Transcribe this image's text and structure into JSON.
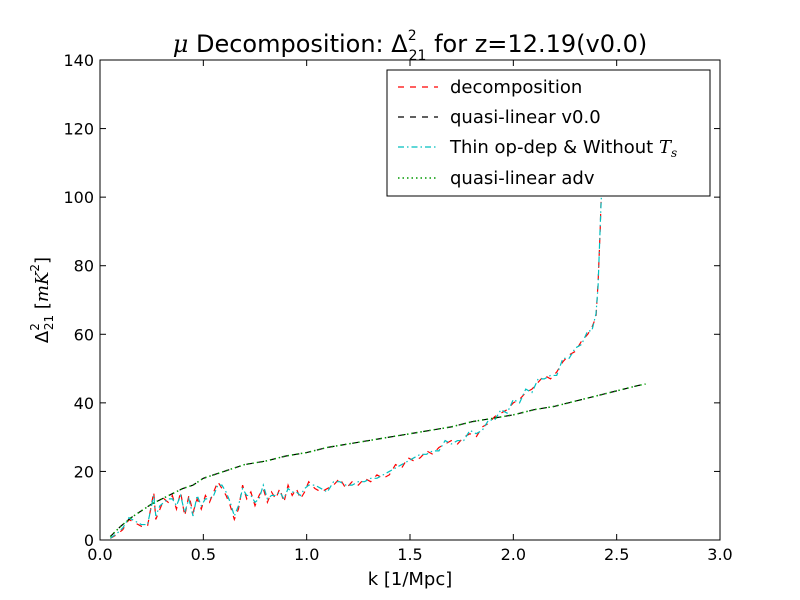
{
  "chart_data": {
    "type": "line",
    "title": {
      "prefix": "μ",
      "middle": " Decomposition: ",
      "delta": "Δ",
      "sup": "2",
      "sub": "21",
      "suffix": " for z=12.19(v0.0)"
    },
    "xlabel": "k [1/Mpc]",
    "ylabel": {
      "delta": "Δ",
      "sup": "2",
      "sub": "21",
      "open": " [",
      "mK": "mK",
      "sup2": "2",
      "close": "]"
    },
    "xlim": [
      0,
      3
    ],
    "ylim": [
      0,
      140
    ],
    "xticks": [
      "0.0",
      "0.5",
      "1.0",
      "1.5",
      "2.0",
      "2.5",
      "3.0"
    ],
    "yticks": [
      "0",
      "20",
      "40",
      "60",
      "80",
      "100",
      "120",
      "140"
    ],
    "legend_position": "top-right",
    "series": [
      {
        "name": "decomposition",
        "color": "#ff0000",
        "style": "dashed",
        "x": [
          0.05,
          0.08,
          0.11,
          0.14,
          0.17,
          0.2,
          0.23,
          0.26,
          0.27,
          0.29,
          0.31,
          0.33,
          0.35,
          0.37,
          0.39,
          0.41,
          0.43,
          0.45,
          0.47,
          0.49,
          0.51,
          0.53,
          0.55,
          0.57,
          0.59,
          0.61,
          0.63,
          0.65,
          0.67,
          0.69,
          0.71,
          0.73,
          0.75,
          0.77,
          0.79,
          0.81,
          0.83,
          0.85,
          0.87,
          0.89,
          0.91,
          0.93,
          0.95,
          0.97,
          0.99,
          1.01,
          1.04,
          1.07,
          1.1,
          1.13,
          1.16,
          1.19,
          1.22,
          1.25,
          1.28,
          1.31,
          1.34,
          1.37,
          1.4,
          1.43,
          1.46,
          1.49,
          1.52,
          1.55,
          1.58,
          1.61,
          1.64,
          1.67,
          1.7,
          1.73,
          1.76,
          1.79,
          1.82,
          1.85,
          1.88,
          1.91,
          1.94,
          1.97,
          2.0,
          2.03,
          2.06,
          2.09,
          2.12,
          2.15,
          2.18,
          2.21,
          2.24,
          2.27,
          2.3,
          2.33,
          2.36,
          2.38,
          2.4,
          2.41,
          2.42,
          2.425,
          2.43
        ],
        "y": [
          0.5,
          1.5,
          3,
          6,
          5,
          4,
          4,
          14,
          6,
          9,
          12,
          11,
          13,
          9,
          14,
          7,
          13,
          8,
          12,
          9,
          13,
          11,
          14,
          17,
          15,
          13,
          10,
          6,
          9,
          16,
          12,
          14,
          10,
          13,
          15,
          11,
          14,
          12,
          15,
          11,
          16,
          13,
          15,
          12,
          14,
          17,
          15,
          14,
          15,
          16,
          18,
          15,
          17,
          16,
          18,
          17,
          19,
          18,
          19,
          22,
          21,
          24,
          23,
          24,
          26,
          25,
          27,
          28,
          29,
          28,
          30,
          31,
          30,
          33,
          34,
          36,
          37,
          38,
          40,
          41,
          43,
          44,
          46,
          48,
          47,
          49,
          52,
          54,
          55,
          58,
          60,
          62,
          65,
          75,
          90,
          100,
          105
        ]
      },
      {
        "name": "quasi-linear v0.0",
        "color": "#000000",
        "style": "dashed",
        "x": [
          0.05,
          0.1,
          0.15,
          0.2,
          0.25,
          0.3,
          0.35,
          0.4,
          0.45,
          0.5,
          0.6,
          0.7,
          0.8,
          0.9,
          1.0,
          1.1,
          1.2,
          1.3,
          1.4,
          1.5,
          1.6,
          1.7,
          1.8,
          1.9,
          2.0,
          2.1,
          2.2,
          2.3,
          2.4,
          2.5,
          2.6,
          2.64
        ],
        "y": [
          1,
          4,
          6.5,
          8.5,
          10.5,
          12,
          13.5,
          15,
          16,
          18,
          20,
          22,
          23,
          24.5,
          25.5,
          27,
          28,
          29,
          30,
          31,
          32,
          33,
          34.5,
          35.5,
          36.5,
          38,
          39,
          40.5,
          42,
          43.5,
          45,
          45.5
        ]
      },
      {
        "name": "Thin op-dep & Without ",
        "name_math": "T",
        "name_sub": "s",
        "color": "#00bfbf",
        "style": "dashdot",
        "x": [
          0.05,
          0.08,
          0.11,
          0.14,
          0.17,
          0.2,
          0.23,
          0.26,
          0.27,
          0.29,
          0.31,
          0.33,
          0.35,
          0.37,
          0.39,
          0.41,
          0.43,
          0.45,
          0.47,
          0.49,
          0.51,
          0.53,
          0.55,
          0.57,
          0.59,
          0.61,
          0.63,
          0.65,
          0.67,
          0.69,
          0.71,
          0.73,
          0.75,
          0.77,
          0.79,
          0.81,
          0.83,
          0.85,
          0.87,
          0.89,
          0.91,
          0.93,
          0.95,
          0.97,
          0.99,
          1.01,
          1.04,
          1.07,
          1.1,
          1.13,
          1.16,
          1.19,
          1.22,
          1.25,
          1.28,
          1.31,
          1.34,
          1.37,
          1.4,
          1.43,
          1.46,
          1.49,
          1.52,
          1.55,
          1.58,
          1.61,
          1.64,
          1.67,
          1.7,
          1.73,
          1.76,
          1.79,
          1.82,
          1.85,
          1.88,
          1.91,
          1.94,
          1.97,
          2.0,
          2.03,
          2.06,
          2.09,
          2.12,
          2.15,
          2.18,
          2.21,
          2.24,
          2.27,
          2.3,
          2.33,
          2.36,
          2.38,
          2.4,
          2.41,
          2.42,
          2.425,
          2.43
        ],
        "y": [
          0.5,
          1.8,
          3.5,
          6.5,
          5.5,
          4.5,
          4.5,
          13,
          7,
          10,
          11,
          12,
          12,
          10,
          13,
          8,
          12,
          7,
          13,
          10,
          12,
          12,
          13,
          16,
          16,
          14,
          11,
          7,
          10,
          15,
          13,
          13,
          11,
          12,
          16,
          12,
          13,
          13,
          14,
          12,
          15,
          14,
          14,
          13,
          15,
          16,
          16,
          15,
          14,
          17,
          17,
          16,
          16,
          17,
          17,
          18,
          18,
          19,
          20,
          21,
          22,
          23,
          24,
          25,
          25,
          26,
          26,
          29,
          28,
          29,
          29,
          32,
          31,
          32,
          35,
          35,
          38,
          37,
          41,
          40,
          44,
          43,
          47,
          47,
          48,
          48,
          53,
          53,
          56,
          57,
          61,
          61,
          66,
          74,
          91,
          99,
          104
        ]
      },
      {
        "name": "quasi-linear adv",
        "color": "#009900",
        "style": "dotted",
        "x": [
          0.05,
          0.1,
          0.15,
          0.2,
          0.25,
          0.3,
          0.35,
          0.4,
          0.45,
          0.5,
          0.6,
          0.7,
          0.8,
          0.9,
          1.0,
          1.1,
          1.2,
          1.3,
          1.4,
          1.5,
          1.6,
          1.7,
          1.8,
          1.9,
          2.0,
          2.1,
          2.2,
          2.3,
          2.4,
          2.5,
          2.6,
          2.64
        ],
        "y": [
          1,
          4,
          6.5,
          8.5,
          10.5,
          12,
          13.5,
          15,
          16,
          18,
          20,
          22,
          23,
          24.5,
          25.5,
          27,
          28,
          29,
          30,
          31,
          32,
          33,
          34.5,
          35.5,
          36.5,
          38,
          39,
          40.5,
          42,
          43.5,
          45,
          45.5
        ]
      }
    ]
  }
}
